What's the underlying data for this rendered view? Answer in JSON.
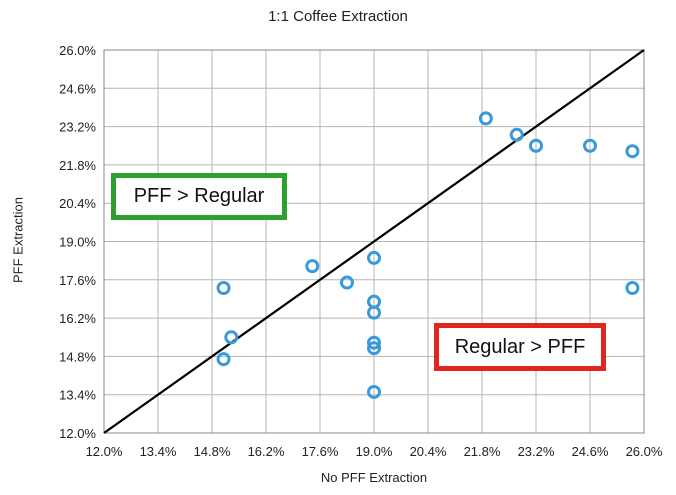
{
  "chart_data": {
    "type": "scatter",
    "title": "1:1 Coffee Extraction",
    "xlabel": "No PFF Extraction",
    "ylabel": "PFF Extraction",
    "xlim": [
      12.0,
      26.0
    ],
    "ylim": [
      12.0,
      26.0
    ],
    "x_ticks": [
      "12.0%",
      "13.4%",
      "14.8%",
      "16.2%",
      "17.6%",
      "19.0%",
      "20.4%",
      "21.8%",
      "23.2%",
      "24.6%",
      "26.0%"
    ],
    "y_ticks": [
      "12.0%",
      "13.4%",
      "14.8%",
      "16.2%",
      "17.6%",
      "19.0%",
      "20.4%",
      "21.8%",
      "23.2%",
      "24.6%",
      "26.0%"
    ],
    "grid": true,
    "marker_color": "#3a9ad9",
    "reference_line": {
      "from": [
        12.0,
        12.0
      ],
      "to": [
        26.0,
        26.0
      ],
      "color": "#000000"
    },
    "points": [
      {
        "x": 15.1,
        "y": 17.3
      },
      {
        "x": 15.1,
        "y": 14.7
      },
      {
        "x": 15.3,
        "y": 15.5
      },
      {
        "x": 17.4,
        "y": 18.1
      },
      {
        "x": 18.3,
        "y": 17.5
      },
      {
        "x": 19.0,
        "y": 18.4
      },
      {
        "x": 19.0,
        "y": 16.8
      },
      {
        "x": 19.0,
        "y": 16.4
      },
      {
        "x": 19.0,
        "y": 15.3
      },
      {
        "x": 19.0,
        "y": 15.1
      },
      {
        "x": 19.0,
        "y": 13.5
      },
      {
        "x": 21.9,
        "y": 23.5
      },
      {
        "x": 22.7,
        "y": 22.9
      },
      {
        "x": 23.2,
        "y": 22.5
      },
      {
        "x": 24.6,
        "y": 22.5
      },
      {
        "x": 25.7,
        "y": 22.3
      },
      {
        "x": 25.7,
        "y": 17.3
      }
    ],
    "annotations": [
      {
        "text": "PFF > Regular",
        "color": "#2ea02e"
      },
      {
        "text": "Regular > PFF",
        "color": "#e0261e"
      }
    ]
  }
}
